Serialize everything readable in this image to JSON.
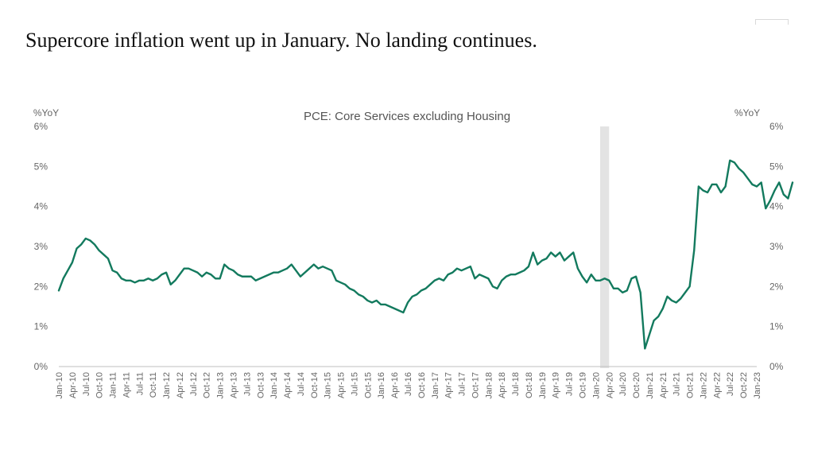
{
  "slide": {
    "title": "Supercore inflation went up in January. No landing continues."
  },
  "chart_data": {
    "type": "line",
    "title": "PCE: Core Services excluding Housing",
    "ylabel_left": "%YoY",
    "ylabel_right": "%YoY",
    "ylim": [
      0,
      6
    ],
    "yticks": [
      "0%",
      "1%",
      "2%",
      "3%",
      "4%",
      "5%",
      "6%"
    ],
    "x_start": "2010-01",
    "x_end": "2023-01",
    "xtick_labels": [
      "Jan-10",
      "Apr-10",
      "Jul-10",
      "Oct-10",
      "Jan-11",
      "Apr-11",
      "Jul-11",
      "Oct-11",
      "Jan-12",
      "Apr-12",
      "Jul-12",
      "Oct-12",
      "Jan-13",
      "Apr-13",
      "Jul-13",
      "Oct-13",
      "Jan-14",
      "Apr-14",
      "Jul-14",
      "Oct-14",
      "Jan-15",
      "Apr-15",
      "Jul-15",
      "Oct-15",
      "Jan-16",
      "Apr-16",
      "Jul-16",
      "Oct-16",
      "Jan-17",
      "Apr-17",
      "Jul-17",
      "Oct-17",
      "Jan-18",
      "Apr-18",
      "Jul-18",
      "Oct-18",
      "Jan-19",
      "Apr-19",
      "Jul-19",
      "Oct-19",
      "Jan-20",
      "Apr-20",
      "Jul-20",
      "Oct-20",
      "Jan-21",
      "Apr-21",
      "Jul-21",
      "Oct-21",
      "Jan-22",
      "Apr-22",
      "Jul-22",
      "Oct-22",
      "Jan-23"
    ],
    "recession_shading": {
      "start": "2020-02",
      "end": "2020-04",
      "color": "#e3e3e3"
    },
    "grid": false,
    "series": [
      {
        "color": "#137a5e",
        "values": [
          1.9,
          2.2,
          2.4,
          2.6,
          2.95,
          3.05,
          3.2,
          3.15,
          3.05,
          2.9,
          2.8,
          2.7,
          2.4,
          2.35,
          2.2,
          2.15,
          2.15,
          2.1,
          2.15,
          2.15,
          2.2,
          2.15,
          2.2,
          2.3,
          2.35,
          2.05,
          2.15,
          2.3,
          2.45,
          2.45,
          2.4,
          2.35,
          2.25,
          2.35,
          2.3,
          2.2,
          2.2,
          2.55,
          2.45,
          2.4,
          2.3,
          2.25,
          2.25,
          2.25,
          2.15,
          2.2,
          2.25,
          2.3,
          2.35,
          2.35,
          2.4,
          2.45,
          2.55,
          2.4,
          2.25,
          2.35,
          2.45,
          2.55,
          2.45,
          2.5,
          2.45,
          2.4,
          2.15,
          2.1,
          2.05,
          1.95,
          1.9,
          1.8,
          1.75,
          1.65,
          1.6,
          1.65,
          1.55,
          1.55,
          1.5,
          1.45,
          1.4,
          1.35,
          1.6,
          1.75,
          1.8,
          1.9,
          1.95,
          2.05,
          2.15,
          2.2,
          2.15,
          2.3,
          2.35,
          2.45,
          2.4,
          2.45,
          2.5,
          2.2,
          2.3,
          2.25,
          2.2,
          2.0,
          1.95,
          2.15,
          2.25,
          2.3,
          2.3,
          2.35,
          2.4,
          2.5,
          2.85,
          2.55,
          2.65,
          2.7,
          2.85,
          2.75,
          2.85,
          2.65,
          2.75,
          2.85,
          2.45,
          2.25,
          2.1,
          2.3,
          2.15,
          2.15,
          2.2,
          2.15,
          1.95,
          1.95,
          1.85,
          1.9,
          2.2,
          2.25,
          1.85,
          0.45,
          0.8,
          1.15,
          1.25,
          1.45,
          1.75,
          1.65,
          1.6,
          1.7,
          1.85,
          2.0,
          2.9,
          4.5,
          4.4,
          4.35,
          4.55,
          4.55,
          4.35,
          4.5,
          5.15,
          5.1,
          4.95,
          4.85,
          4.7,
          4.55,
          4.5,
          4.6,
          3.95,
          4.15,
          4.4,
          4.6,
          4.3,
          4.2,
          4.6
        ]
      }
    ]
  }
}
